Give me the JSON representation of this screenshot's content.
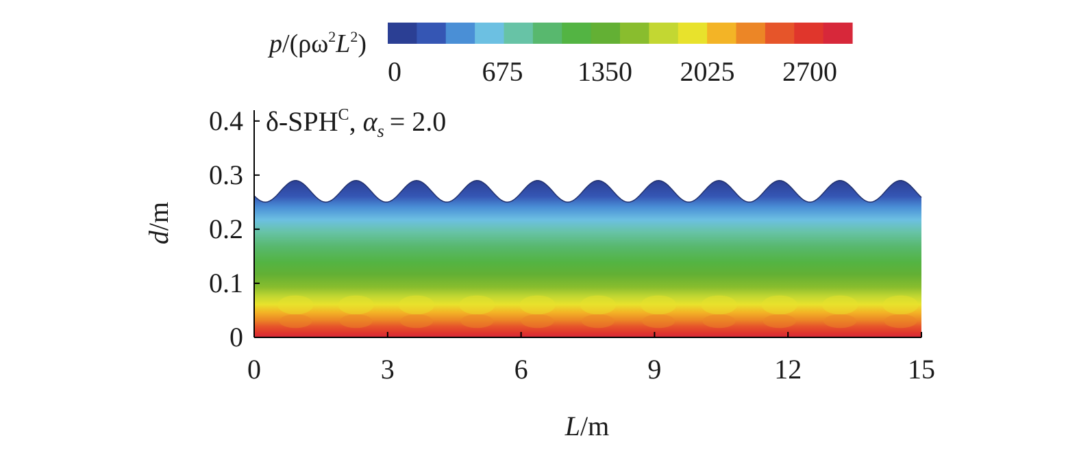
{
  "chart_data": {
    "type": "heatmap",
    "title": "δ-SPH",
    "title_superscript": "C",
    "title_param_symbol": "α",
    "title_param_subscript": "s",
    "title_param_value": "= 2.0",
    "colorbar": {
      "label_p": "p",
      "label_rest": "/(ρω",
      "label_sup1": "2",
      "label_L": "L",
      "label_sup2": "2",
      "label_close": ")",
      "ticks": [
        "0",
        "675",
        "1350",
        "2025",
        "2700"
      ],
      "tick_values": [
        0,
        675,
        1350,
        2025,
        2700
      ],
      "range": [
        0,
        2700
      ],
      "colors": [
        "#2b3f94",
        "#3556b4",
        "#4a8fd6",
        "#6cc0e2",
        "#67c3a6",
        "#58b86e",
        "#53b443",
        "#63b034",
        "#89bd2e",
        "#c3d732",
        "#e8e22c",
        "#f3b426",
        "#ec8626",
        "#e6552a",
        "#e0362c",
        "#d7283a"
      ]
    },
    "x_axis": {
      "label_var": "L",
      "label_unit": "/m",
      "range": [
        0,
        15
      ],
      "ticks": [
        "0",
        "3",
        "6",
        "9",
        "12",
        "15"
      ],
      "tick_values": [
        0,
        3,
        6,
        9,
        12,
        15
      ]
    },
    "y_axis": {
      "label_var": "d",
      "label_unit": "/m",
      "range": [
        0,
        0.42
      ],
      "ticks": [
        "0",
        "0.1",
        "0.2",
        "0.3",
        "0.4"
      ],
      "tick_values": [
        0,
        0.1,
        0.2,
        0.3,
        0.4
      ]
    },
    "free_surface": {
      "mean_depth": 0.27,
      "amplitude": 0.02,
      "wavelength": 1.36,
      "crest_x": 0.93
    },
    "field_max": 2700,
    "grid": false
  }
}
